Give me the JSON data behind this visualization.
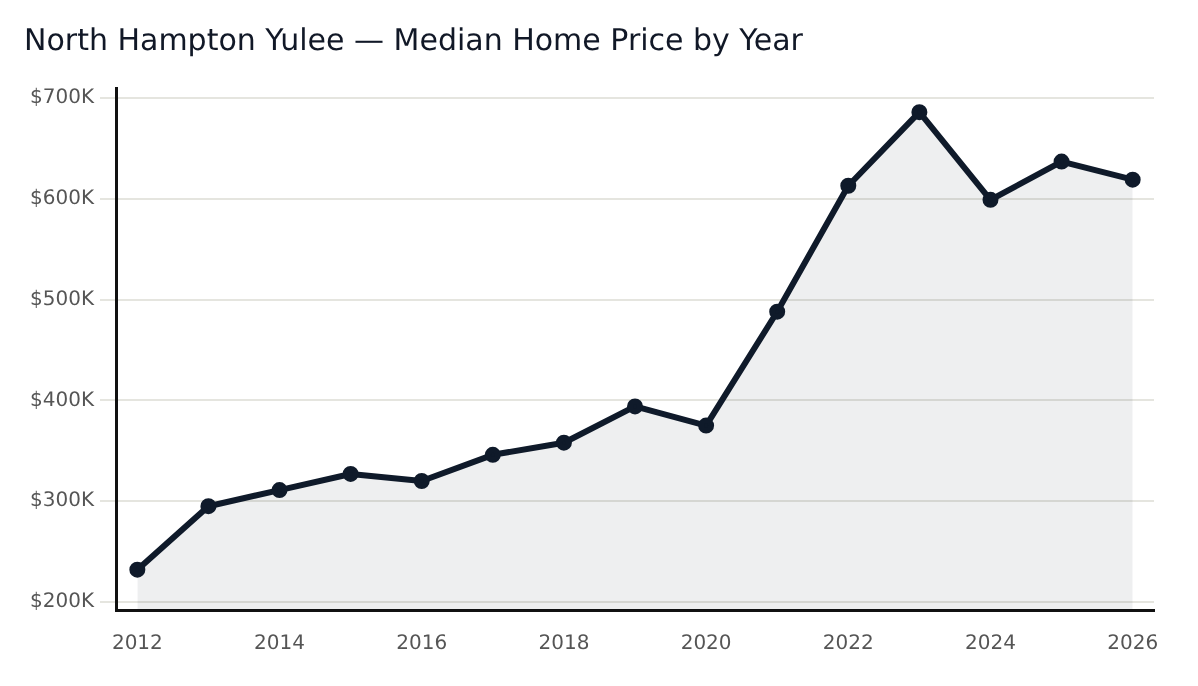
{
  "chart_data": {
    "type": "area",
    "title": "North Hampton Yulee — Median Home Price by Year",
    "x": [
      2012,
      2013,
      2014,
      2015,
      2016,
      2017,
      2018,
      2019,
      2020,
      2021,
      2022,
      2023,
      2024,
      2025,
      2026
    ],
    "series": [
      {
        "color": "#0f1a2a",
        "values": [
          232000,
          295000,
          311000,
          327000,
          320000,
          346000,
          358000,
          394000,
          375000,
          488000,
          613000,
          686000,
          599000,
          637000,
          619000
        ]
      }
    ],
    "xlim": [
      2011.7,
      2026.3
    ],
    "xticks": [
      2012,
      2014,
      2016,
      2018,
      2020,
      2022,
      2024,
      2026
    ],
    "ylim": [
      192000,
      710000
    ],
    "yticks": [
      {
        "value": 200000,
        "label": "$200K"
      },
      {
        "value": 300000,
        "label": "$300K"
      },
      {
        "value": 400000,
        "label": "$400K"
      },
      {
        "value": 500000,
        "label": "$500K"
      },
      {
        "value": 600000,
        "label": "$600K"
      },
      {
        "value": 700000,
        "label": "$700K"
      }
    ],
    "grid": "y",
    "legend": false,
    "marker": "circle",
    "line_style": "solid"
  }
}
